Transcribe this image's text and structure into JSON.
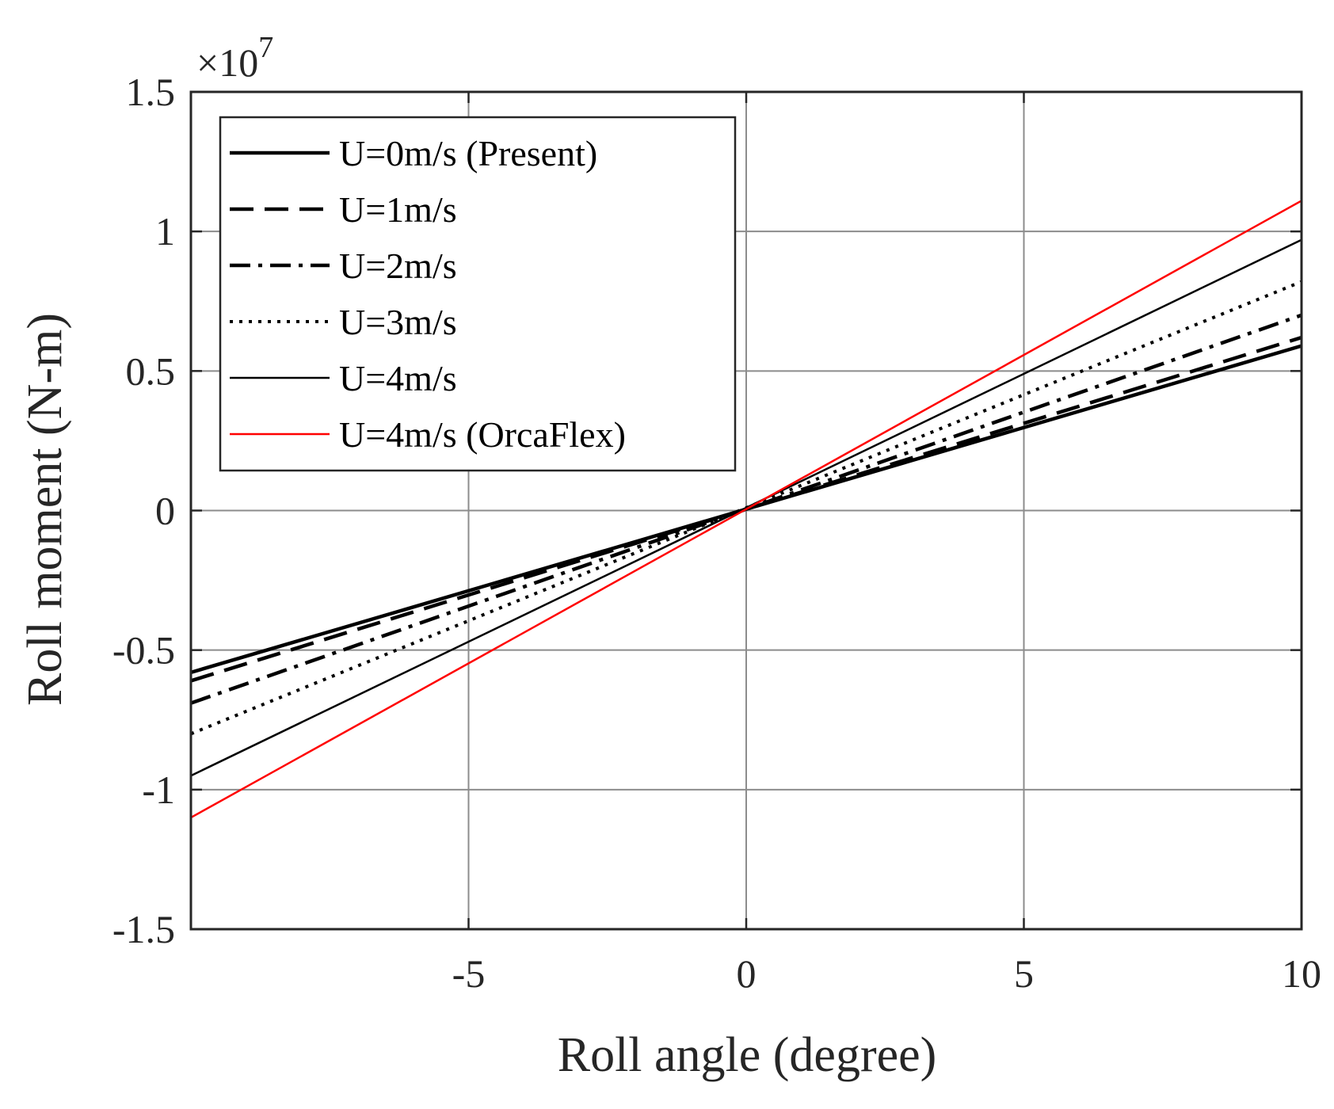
{
  "chart_data": {
    "type": "line",
    "title": "",
    "xlabel": "Roll angle (degree)",
    "ylabel": "Roll moment (N-m)",
    "y_multiplier": {
      "base": "×10",
      "exponent": "7"
    },
    "xlim": [
      -10,
      10
    ],
    "ylim": [
      -1.5,
      1.5
    ],
    "x_ticks": [
      {
        "value": -5,
        "label": "-5"
      },
      {
        "value": 0,
        "label": "0"
      },
      {
        "value": 5,
        "label": "5"
      },
      {
        "value": 10,
        "label": "10"
      }
    ],
    "y_ticks": [
      {
        "value": -1.5,
        "label": "-1.5"
      },
      {
        "value": -1,
        "label": "-1"
      },
      {
        "value": -0.5,
        "label": "-0.5"
      },
      {
        "value": 0,
        "label": "0"
      },
      {
        "value": 0.5,
        "label": "0.5"
      },
      {
        "value": 1,
        "label": "1"
      },
      {
        "value": 1.5,
        "label": "1.5"
      }
    ],
    "grid": true,
    "legend_position": "top-left",
    "series": [
      {
        "name": "U=0m/s (Present)",
        "color": "#000000",
        "style": "solid-thick",
        "x": [
          -10,
          10
        ],
        "y": [
          -0.58,
          0.59
        ]
      },
      {
        "name": "U=1m/s",
        "color": "#000000",
        "style": "dashed",
        "x": [
          -10,
          10
        ],
        "y": [
          -0.61,
          0.62
        ]
      },
      {
        "name": "U=2m/s",
        "color": "#000000",
        "style": "dashdot",
        "x": [
          -10,
          10
        ],
        "y": [
          -0.69,
          0.7
        ]
      },
      {
        "name": "U=3m/s",
        "color": "#000000",
        "style": "dotted",
        "x": [
          -10,
          10
        ],
        "y": [
          -0.8,
          0.82
        ]
      },
      {
        "name": "U=4m/s",
        "color": "#000000",
        "style": "solid-thin",
        "x": [
          -10,
          10
        ],
        "y": [
          -0.95,
          0.97
        ]
      },
      {
        "name": "U=4m/s (OrcaFlex)",
        "color": "#ff0000",
        "style": "solid-thin",
        "x": [
          -10,
          10
        ],
        "y": [
          -1.1,
          1.11
        ]
      }
    ]
  }
}
